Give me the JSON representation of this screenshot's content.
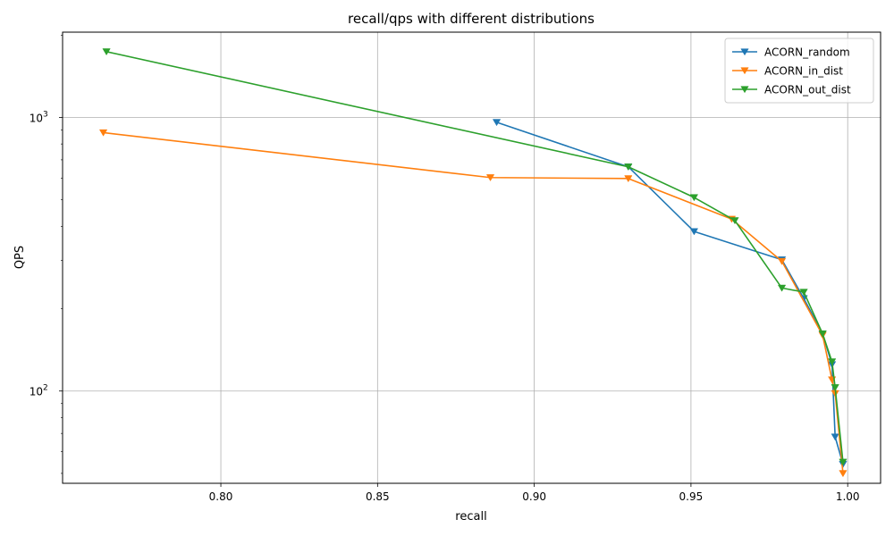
{
  "chart_data": {
    "type": "line",
    "title": "recall/qps with different distributions",
    "xlabel": "recall",
    "ylabel": "QPS",
    "xlim": [
      0.7495,
      1.0105
    ],
    "ylim": [
      46,
      2050
    ],
    "yscale": "log",
    "grid": true,
    "legend_position": "top-right",
    "marker": "triangle-down",
    "x_ticks": [
      {
        "value": 0.8,
        "label": "0.80"
      },
      {
        "value": 0.85,
        "label": "0.85"
      },
      {
        "value": 0.9,
        "label": "0.90"
      },
      {
        "value": 0.95,
        "label": "0.95"
      },
      {
        "value": 1.0,
        "label": "1.00"
      }
    ],
    "y_ticks": [
      {
        "value": 100,
        "label": "10",
        "sup": "2"
      },
      {
        "value": 1000,
        "label": "10",
        "sup": "3"
      }
    ],
    "series": [
      {
        "name": "ACORN_random",
        "color": "#1f77b4",
        "points": [
          [
            0.888,
            960
          ],
          [
            0.93,
            660
          ],
          [
            0.951,
            383
          ],
          [
            0.979,
            302
          ],
          [
            0.986,
            218
          ],
          [
            0.992,
            162
          ],
          [
            0.995,
            125
          ],
          [
            0.996,
            68
          ],
          [
            0.9985,
            54
          ]
        ]
      },
      {
        "name": "ACORN_in_dist",
        "color": "#ff7f0e",
        "points": [
          [
            0.7625,
            880
          ],
          [
            0.886,
            603
          ],
          [
            0.93,
            598
          ],
          [
            0.963,
            425
          ],
          [
            0.979,
            298
          ],
          [
            0.992,
            160
          ],
          [
            0.995,
            110
          ],
          [
            0.996,
            98
          ],
          [
            0.9985,
            50
          ]
        ]
      },
      {
        "name": "ACORN_out_dist",
        "color": "#2ca02c",
        "points": [
          [
            0.7635,
            1740
          ],
          [
            0.93,
            660
          ],
          [
            0.951,
            510
          ],
          [
            0.964,
            420
          ],
          [
            0.979,
            238
          ],
          [
            0.986,
            230
          ],
          [
            0.992,
            162
          ],
          [
            0.995,
            128
          ],
          [
            0.996,
            103
          ],
          [
            0.9985,
            55
          ]
        ]
      }
    ]
  }
}
